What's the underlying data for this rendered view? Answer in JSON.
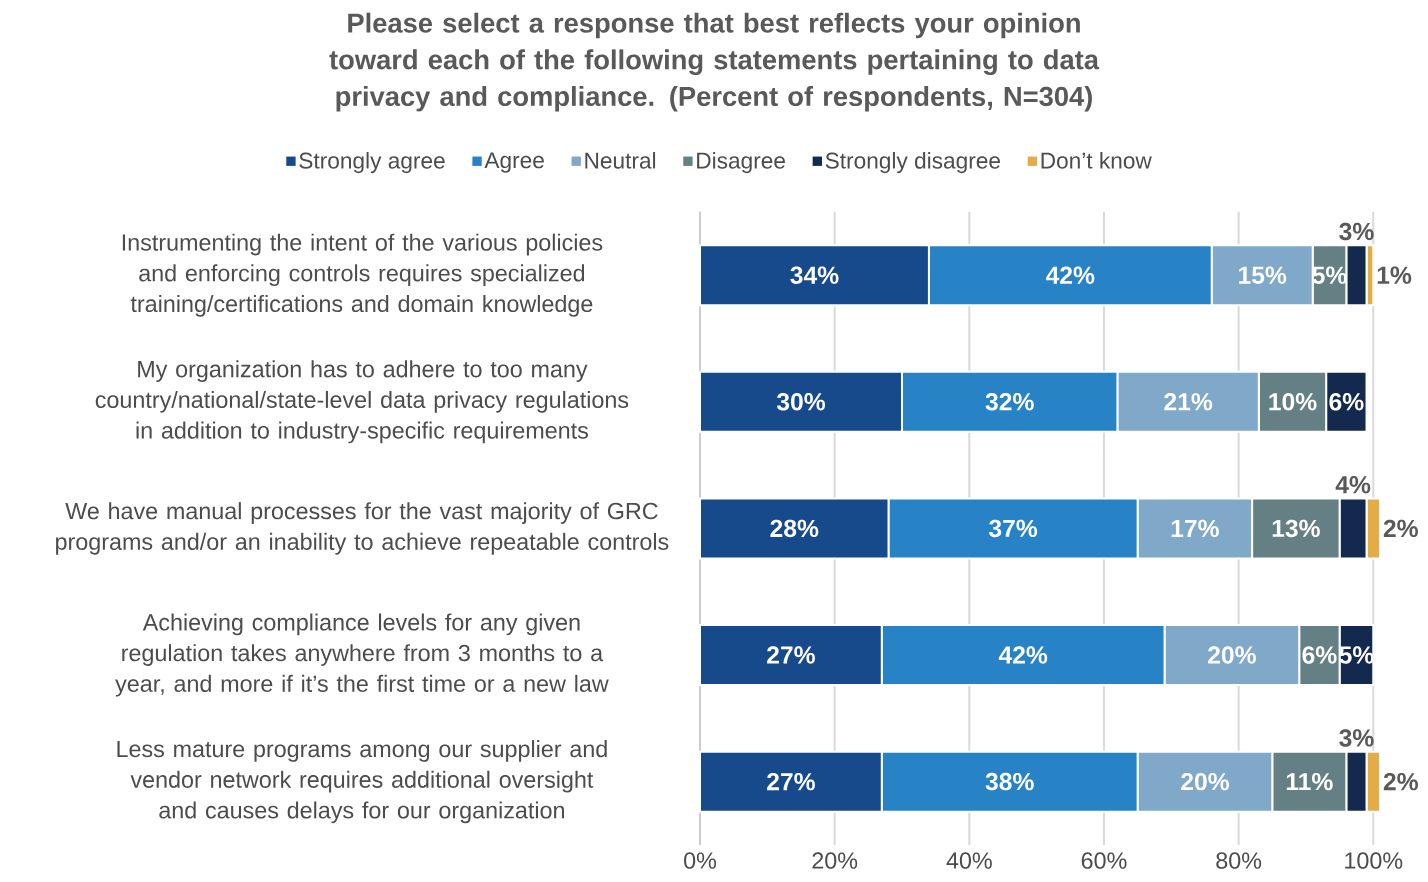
{
  "chart_data": {
    "type": "bar",
    "orientation": "horizontal",
    "stacked": true,
    "title": "Please select a response that best reflects your opinion toward each of the following statements pertaining to data privacy and compliance. (Percent of respondents, N=304)",
    "categories": [
      "Instrumenting the intent of the various policies and enforcing controls requires specialized training/certifications and domain knowledge",
      "My organization has to adhere to too many country/national/state-level data privacy regulations in addition to industry-specific requirements",
      "We have manual processes for the vast majority of GRC programs and/or an inability to achieve repeatable controls",
      "Achieving compliance levels for any given regulation takes anywhere from 3 months to a year, and more if it’s the first time or a new law",
      "Less mature programs among our supplier and vendor network requires additional oversight and causes delays for our organization"
    ],
    "series": [
      {
        "name": "Strongly agree",
        "color": "#174a8b",
        "values": [
          34,
          30,
          28,
          27,
          27
        ],
        "value_labels": [
          "34%",
          "30%",
          "28%",
          "27%",
          "27%"
        ]
      },
      {
        "name": "Agree",
        "color": "#2882c6",
        "values": [
          42,
          32,
          37,
          42,
          38
        ],
        "value_labels": [
          "42%",
          "32%",
          "37%",
          "42%",
          "38%"
        ]
      },
      {
        "name": "Neutral",
        "color": "#7fa8c9",
        "values": [
          15,
          21,
          17,
          20,
          20
        ],
        "value_labels": [
          "15%",
          "21%",
          "17%",
          "20%",
          "20%"
        ]
      },
      {
        "name": "Disagree",
        "color": "#658085",
        "values": [
          5,
          10,
          13,
          6,
          11
        ],
        "value_labels": [
          "5%",
          "10%",
          "13%",
          "6%",
          "11%"
        ]
      },
      {
        "name": "Strongly disagree",
        "color": "#132a4e",
        "values": [
          3,
          6,
          4,
          5,
          3
        ],
        "value_labels": [
          "3%",
          "6%",
          "4%",
          "5%",
          "3%"
        ]
      },
      {
        "name": "Don’t know",
        "color": "#e5ac45",
        "values": [
          1,
          null,
          2,
          null,
          2
        ],
        "value_labels": [
          "1%",
          null,
          "2%",
          null,
          "2%"
        ]
      }
    ],
    "xlim": [
      0,
      101
    ],
    "xticks": [
      {
        "value": 0,
        "label": "0%"
      },
      {
        "value": 20,
        "label": "20%"
      },
      {
        "value": 40,
        "label": "40%"
      },
      {
        "value": 60,
        "label": "60%"
      },
      {
        "value": 80,
        "label": "80%"
      },
      {
        "value": 100,
        "label": "100%"
      }
    ],
    "grid": "x",
    "legend": "top"
  }
}
